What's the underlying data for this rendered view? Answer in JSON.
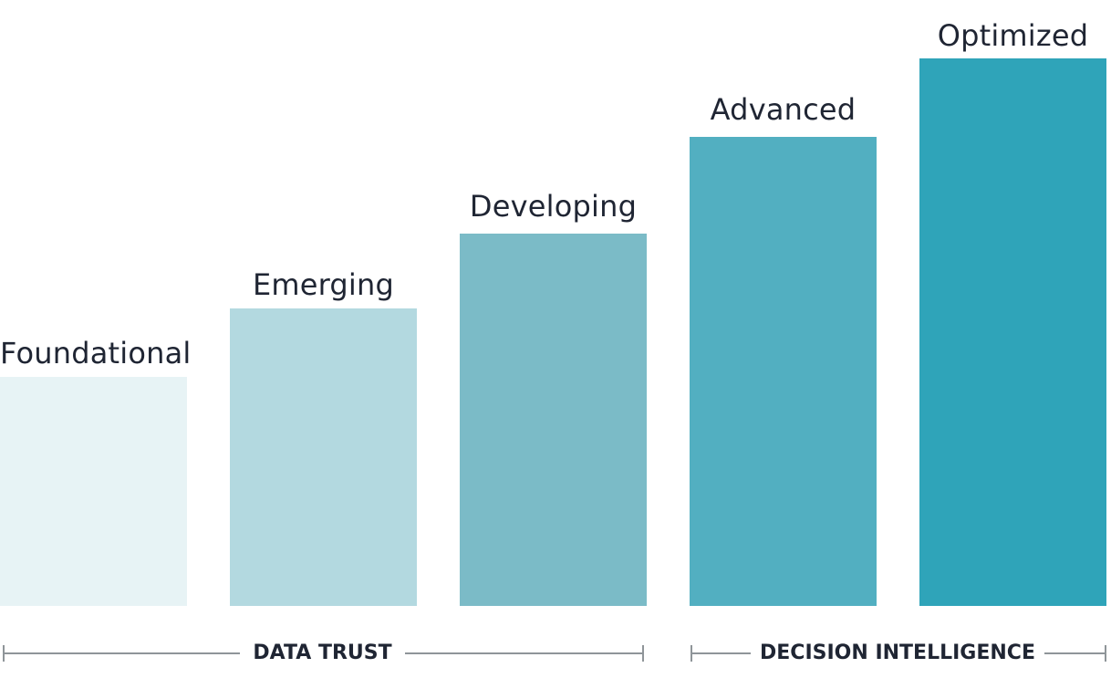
{
  "stages": [
    {
      "name": "Foundational",
      "level": 1,
      "color": "#e7f3f5"
    },
    {
      "name": "Emerging",
      "level": 2,
      "color": "#b3d9e0"
    },
    {
      "name": "Developing",
      "level": 3,
      "color": "#7bbbc7"
    },
    {
      "name": "Advanced",
      "level": 4,
      "color": "#52afc1"
    },
    {
      "name": "Optimized",
      "level": 5,
      "color": "#2fa4b9"
    }
  ],
  "groups": [
    {
      "label": "DATA TRUST",
      "from_stage": 0,
      "to_stage": 2
    },
    {
      "label": "DECISION INTELLIGENCE",
      "from_stage": 3,
      "to_stage": 4
    }
  ]
}
